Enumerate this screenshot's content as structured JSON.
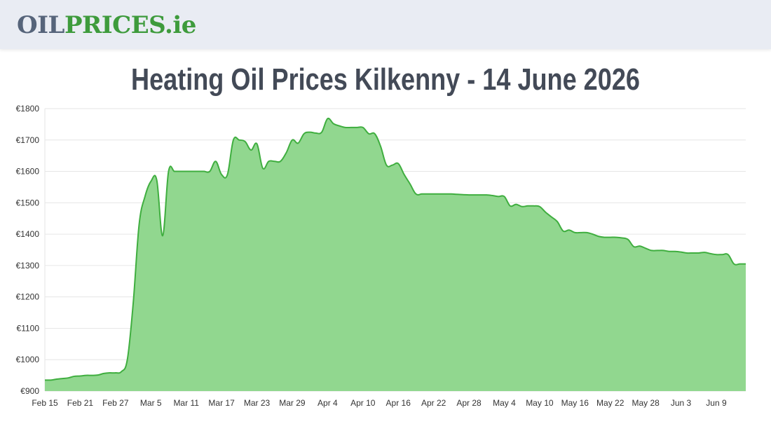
{
  "header": {
    "logo_part1": "OIL",
    "logo_part2": "PRICES",
    "logo_part3": ".ie"
  },
  "page_title": "Heating Oil Prices Kilkenny - 14 June 2026",
  "colors": {
    "header_bg": "#e9ecf3",
    "logo_grey": "#56647a",
    "logo_green": "#3e9b3c",
    "line": "#3fae3f",
    "fill": "#91d78f",
    "title": "#434a57"
  },
  "chart_data": {
    "type": "area",
    "title": "",
    "xlabel": "",
    "ylabel": "",
    "ylim": [
      900,
      1800
    ],
    "y_ticks": [
      900,
      1000,
      1100,
      1200,
      1300,
      1400,
      1500,
      1600,
      1700,
      1800
    ],
    "y_tick_labels": [
      "€900",
      "€1000",
      "€1100",
      "€1200",
      "€1300",
      "€1400",
      "€1500",
      "€1600",
      "€1700",
      "€1800"
    ],
    "x_tick_labels": [
      "Feb 15",
      "Feb 21",
      "Feb 27",
      "Mar 5",
      "Mar 11",
      "Mar 17",
      "Mar 23",
      "Mar 29",
      "Apr 4",
      "Apr 10",
      "Apr 16",
      "Apr 22",
      "Apr 28",
      "May 4",
      "May 10",
      "May 16",
      "May 22",
      "May 28",
      "Jun 3",
      "Jun 9"
    ],
    "grid": true,
    "legend": "none",
    "x": [
      "Feb 15",
      "Feb 16",
      "Feb 17",
      "Feb 18",
      "Feb 19",
      "Feb 20",
      "Feb 21",
      "Feb 22",
      "Feb 23",
      "Feb 24",
      "Feb 25",
      "Feb 26",
      "Feb 27",
      "Feb 28",
      "Mar 1",
      "Mar 2",
      "Mar 3",
      "Mar 4",
      "Mar 5",
      "Mar 6",
      "Mar 7",
      "Mar 8",
      "Mar 9",
      "Mar 10",
      "Mar 11",
      "Mar 12",
      "Mar 13",
      "Mar 14",
      "Mar 15",
      "Mar 16",
      "Mar 17",
      "Mar 18",
      "Mar 19",
      "Mar 20",
      "Mar 21",
      "Mar 22",
      "Mar 23",
      "Mar 24",
      "Mar 25",
      "Mar 26",
      "Mar 27",
      "Mar 28",
      "Mar 29",
      "Mar 30",
      "Mar 31",
      "Apr 1",
      "Apr 2",
      "Apr 3",
      "Apr 4",
      "Apr 5",
      "Apr 6",
      "Apr 7",
      "Apr 8",
      "Apr 9",
      "Apr 10",
      "Apr 11",
      "Apr 12",
      "Apr 13",
      "Apr 14",
      "Apr 15",
      "Apr 16",
      "Apr 17",
      "Apr 18",
      "Apr 19",
      "Apr 20",
      "Apr 21",
      "Apr 22",
      "Apr 23",
      "Apr 24",
      "Apr 25",
      "Apr 26",
      "Apr 27",
      "Apr 28",
      "Apr 29",
      "Apr 30",
      "May 1",
      "May 2",
      "May 3",
      "May 4",
      "May 5",
      "May 6",
      "May 7",
      "May 8",
      "May 9",
      "May 10",
      "May 11",
      "May 12",
      "May 13",
      "May 14",
      "May 15",
      "May 16",
      "May 17",
      "May 18",
      "May 19",
      "May 20",
      "May 21",
      "May 22",
      "May 23",
      "May 24",
      "May 25",
      "May 26",
      "May 27",
      "May 28",
      "May 29",
      "May 30",
      "May 31",
      "Jun 1",
      "Jun 2",
      "Jun 3",
      "Jun 4",
      "Jun 5",
      "Jun 6",
      "Jun 7",
      "Jun 8",
      "Jun 9",
      "Jun 10",
      "Jun 11",
      "Jun 12",
      "Jun 13",
      "Jun 14"
    ],
    "series": [
      {
        "values": [
          935,
          935,
          938,
          940,
          942,
          947,
          948,
          950,
          950,
          951,
          956,
          958,
          958,
          962,
          1000,
          1180,
          1430,
          1520,
          1568,
          1572,
          1395,
          1600,
          1600,
          1600,
          1600,
          1600,
          1600,
          1600,
          1600,
          1632,
          1590,
          1590,
          1700,
          1700,
          1695,
          1668,
          1688,
          1610,
          1632,
          1632,
          1632,
          1660,
          1700,
          1690,
          1720,
          1725,
          1722,
          1725,
          1768,
          1752,
          1745,
          1740,
          1740,
          1740,
          1740,
          1720,
          1720,
          1680,
          1620,
          1620,
          1625,
          1590,
          1560,
          1528,
          1528,
          1528,
          1528,
          1528,
          1528,
          1528,
          1527,
          1526,
          1525,
          1525,
          1525,
          1525,
          1523,
          1520,
          1520,
          1490,
          1495,
          1488,
          1490,
          1490,
          1488,
          1470,
          1455,
          1440,
          1410,
          1413,
          1405,
          1405,
          1405,
          1400,
          1393,
          1390,
          1390,
          1390,
          1388,
          1383,
          1360,
          1362,
          1355,
          1348,
          1348,
          1348,
          1345,
          1345,
          1343,
          1340,
          1340,
          1340,
          1342,
          1338,
          1335,
          1335,
          1335,
          1305,
          1305,
          1305
        ]
      }
    ]
  }
}
